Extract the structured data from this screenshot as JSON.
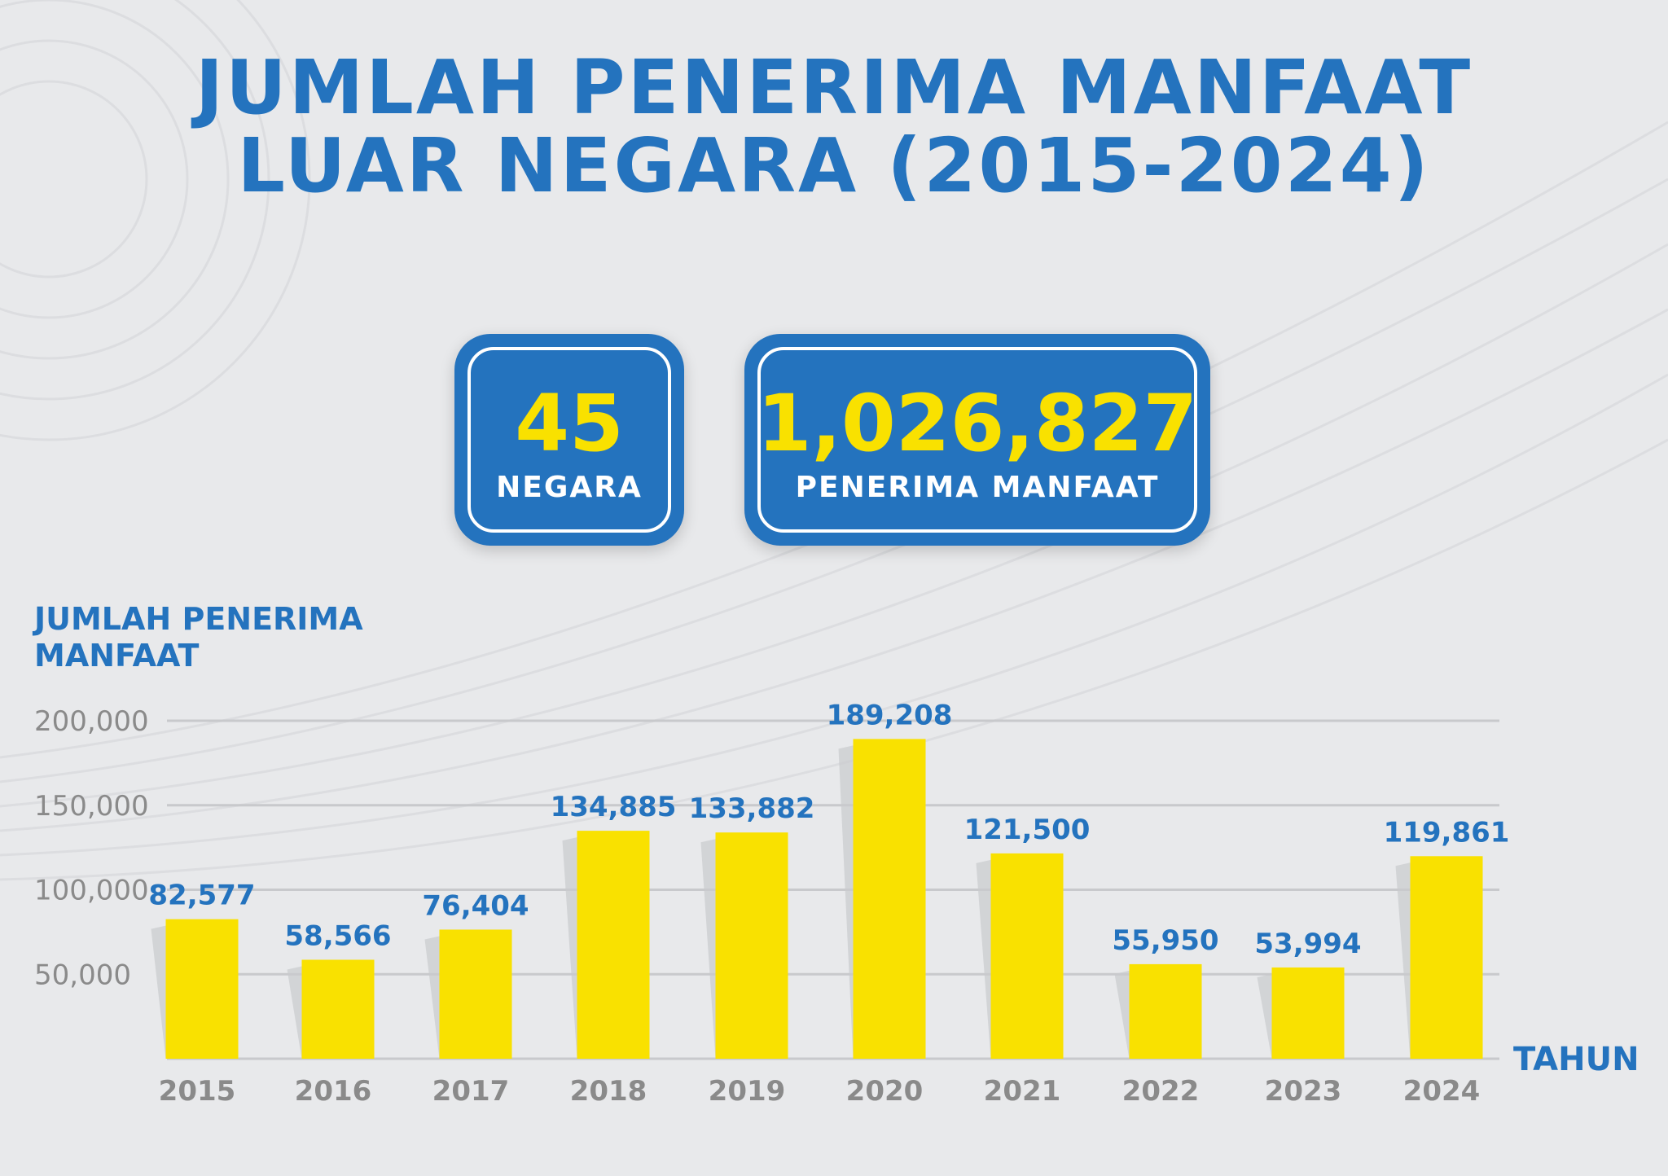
{
  "title_line1": "JUMLAH PENERIMA MANFAAT",
  "title_line2": "LUAR NEGARA (2015-2024)",
  "stats": {
    "countries_value": "45",
    "countries_label": "NEGARA",
    "recipients_value": "1,026,827",
    "recipients_label": "PENERIMA MANFAAT"
  },
  "colors": {
    "blue": "#2473be",
    "yellow": "#f9e100",
    "grid": "#c8c9cc",
    "tick": "#8a8a8a"
  },
  "chart_data": {
    "type": "bar",
    "title": "JUMLAH PENERIMA MANFAAT LUAR NEGARA (2015-2024)",
    "ylabel": "JUMLAH PENERIMA MANFAAT",
    "xlabel": "TAHUN",
    "categories": [
      "2015",
      "2016",
      "2017",
      "2018",
      "2019",
      "2020",
      "2021",
      "2022",
      "2023",
      "2024"
    ],
    "values": [
      82577,
      58566,
      76404,
      134885,
      133882,
      189208,
      121500,
      55950,
      53994,
      119861
    ],
    "value_labels": [
      "82,577",
      "58,566",
      "76,404",
      "134,885",
      "133,882",
      "189,208",
      "121,500",
      "55,950",
      "53,994",
      "119,861"
    ],
    "yticks": [
      50000,
      100000,
      150000,
      200000
    ],
    "ytick_labels": [
      "50,000",
      "100,000",
      "150,000",
      "200,000"
    ],
    "ylim": [
      0,
      200000
    ],
    "grid": true
  }
}
